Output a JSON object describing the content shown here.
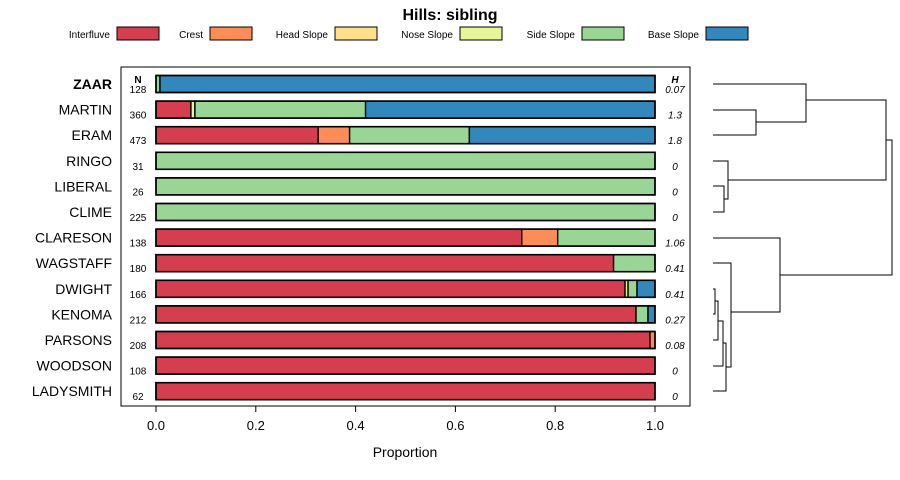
{
  "chart_data": {
    "type": "bar",
    "orientation": "horizontal",
    "stacked": true,
    "title": "Hills: sibling",
    "xlabel": "Proportion",
    "ylabel": "",
    "xlim": [
      0,
      1
    ],
    "x_ticks": [
      "0.0",
      "0.2",
      "0.4",
      "0.6",
      "0.8",
      "1.0"
    ],
    "n_header": "N",
    "h_header": "H",
    "legend_position": "top",
    "legend": [
      {
        "name": "Interfluve",
        "color": "#D53E4F"
      },
      {
        "name": "Crest",
        "color": "#FC8D59"
      },
      {
        "name": "Head Slope",
        "color": "#FEE08B"
      },
      {
        "name": "Nose Slope",
        "color": "#E6F598"
      },
      {
        "name": "Side Slope",
        "color": "#99D594"
      },
      {
        "name": "Base Slope",
        "color": "#3288BD"
      }
    ],
    "categories": [
      "ZAAR",
      "MARTIN",
      "ERAM",
      "RINGO",
      "LIBERAL",
      "CLIME",
      "CLARESON",
      "WAGSTAFF",
      "DWIGHT",
      "KENOMA",
      "PARSONS",
      "WOODSON",
      "LADYSMITH"
    ],
    "highlighted": "ZAAR",
    "n": [
      "128",
      "360",
      "473",
      "31",
      "26",
      "225",
      "138",
      "180",
      "166",
      "212",
      "208",
      "108",
      "62"
    ],
    "h": [
      "0.07",
      "1.3",
      "1.8",
      "0",
      "0",
      "0",
      "1.06",
      "0.41",
      "0.41",
      "0.27",
      "0.08",
      "0",
      "0"
    ],
    "series": [
      {
        "name": "Interfluve",
        "values": [
          0.0,
          0.07,
          0.325,
          0,
          0,
          0,
          0.733,
          0.917,
          0.94,
          0.962,
          0.99,
          1.0,
          1.0
        ]
      },
      {
        "name": "Crest",
        "values": [
          0.0,
          0.0,
          0.063,
          0,
          0,
          0,
          0.072,
          0.0,
          0.0,
          0.0,
          0.01,
          0,
          0
        ]
      },
      {
        "name": "Head Slope",
        "values": [
          0,
          0,
          0,
          0,
          0,
          0,
          0,
          0,
          0,
          0,
          0,
          0,
          0
        ]
      },
      {
        "name": "Nose Slope",
        "values": [
          0.0,
          0.008,
          0.0,
          0,
          0,
          0,
          0.0,
          0.0,
          0.006,
          0.0,
          0.0,
          0,
          0
        ]
      },
      {
        "name": "Side Slope",
        "values": [
          0.008,
          0.342,
          0.24,
          1.0,
          1.0,
          1.0,
          0.195,
          0.083,
          0.018,
          0.024,
          0.0,
          0,
          0
        ]
      },
      {
        "name": "Base Slope",
        "values": [
          0.992,
          0.58,
          0.372,
          0,
          0,
          0,
          0.0,
          0.0,
          0.036,
          0.014,
          0.0,
          0,
          0
        ]
      }
    ],
    "dendrogram": {
      "type": "hierarchical clustering",
      "leaves": [
        "ZAAR",
        "MARTIN",
        "ERAM",
        "RINGO",
        "LIBERAL",
        "CLIME",
        "CLARESON",
        "WAGSTAFF",
        "DWIGHT",
        "KENOMA",
        "PARSONS",
        "WOODSON",
        "LADYSMITH"
      ]
    }
  }
}
